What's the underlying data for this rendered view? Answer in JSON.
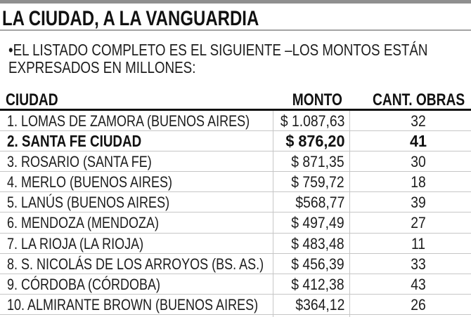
{
  "colors": {
    "text": "#1c1c1c",
    "title": "#111111",
    "top_bar": "#8f8f8f",
    "title_rule": "#a3a3a3",
    "header_rule": "#111111",
    "grid": "#c6c6c6",
    "bg": "#ffffff"
  },
  "chart_data": {
    "type": "table",
    "title": "LA CIUDAD, A LA VANGUARDIA",
    "subtitle": [
      "•EL LISTADO COMPLETO ES EL SIGUIENTE –LOS MONTOS ESTÁN",
      "EXPRESADOS EN MILLONES:"
    ],
    "columns": [
      "CIUDAD",
      "MONTO",
      "CANT. OBRAS"
    ],
    "grid": true,
    "rows": [
      {
        "ciudad": "1. LOMAS DE ZAMORA (BUENOS AIRES)",
        "monto": "$ 1.087,63",
        "obras": "32",
        "bold": false
      },
      {
        "ciudad": "2. SANTA FE CIUDAD",
        "monto": "$ 876,20",
        "obras": "41",
        "bold": true
      },
      {
        "ciudad": "3. ROSARIO (SANTA FE)",
        "monto": "$ 871,35",
        "obras": "30",
        "bold": false
      },
      {
        "ciudad": "4. MERLO (BUENOS AIRES)",
        "monto": "$ 759,72",
        "obras": "18",
        "bold": false
      },
      {
        "ciudad": "5. LANÚS (BUENOS AIRES)",
        "monto": "$568,77",
        "obras": "39",
        "bold": false
      },
      {
        "ciudad": "6. MENDOZA (MENDOZA)",
        "monto": "$ 497,49",
        "obras": "27",
        "bold": false
      },
      {
        "ciudad": "7. LA RIOJA (LA RIOJA)",
        "monto": "$ 483,48",
        "obras": "11",
        "bold": false
      },
      {
        "ciudad": "8. S. NICOLÁS DE LOS ARROYOS (BS. AS.)",
        "monto": "$ 456,39",
        "obras": "33",
        "bold": false
      },
      {
        "ciudad": "9. CÓRDOBA (CÓRDOBA)",
        "monto": "$ 412,38",
        "obras": "43",
        "bold": false
      },
      {
        "ciudad": "10. ALMIRANTE BROWN (BUENOS AIRES)",
        "monto": "$364,12",
        "obras": "26",
        "bold": false
      }
    ]
  }
}
